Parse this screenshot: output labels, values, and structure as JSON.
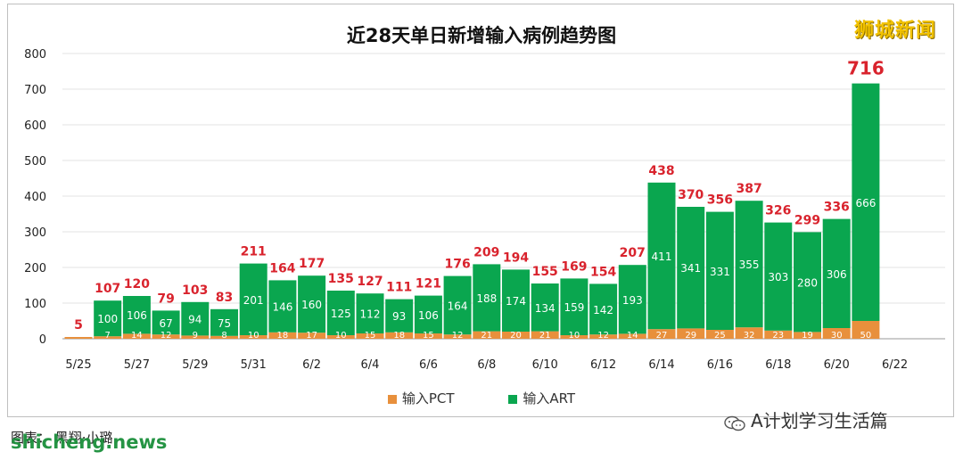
{
  "chart_data": {
    "type": "bar",
    "stacked": true,
    "title": "近28天单日新增输入病例趋势图",
    "categories": [
      "5/25",
      "5/26",
      "5/27",
      "5/28",
      "5/29",
      "5/30",
      "5/31",
      "6/1",
      "6/2",
      "6/3",
      "6/4",
      "6/5",
      "6/6",
      "6/7",
      "6/8",
      "6/9",
      "6/10",
      "6/11",
      "6/12",
      "6/13",
      "6/14",
      "6/15",
      "6/16",
      "6/17",
      "6/18",
      "6/19",
      "6/20",
      "6/21"
    ],
    "x_tick_labels": [
      "5/25",
      "5/27",
      "5/29",
      "5/31",
      "6/2",
      "6/4",
      "6/6",
      "6/8",
      "6/10",
      "6/12",
      "6/14",
      "6/16",
      "6/18",
      "6/20",
      "6/22"
    ],
    "series": [
      {
        "name": "输入PCT",
        "color": "#e8903c",
        "values": [
          5,
          7,
          14,
          12,
          9,
          8,
          10,
          18,
          17,
          10,
          15,
          18,
          15,
          12,
          21,
          20,
          21,
          10,
          12,
          14,
          27,
          29,
          25,
          32,
          23,
          19,
          30,
          50
        ]
      },
      {
        "name": "输入ART",
        "color": "#0aa64f",
        "values": [
          0,
          100,
          106,
          67,
          94,
          75,
          201,
          146,
          160,
          125,
          112,
          93,
          106,
          164,
          188,
          174,
          134,
          159,
          142,
          193,
          411,
          341,
          331,
          355,
          303,
          280,
          306,
          666
        ]
      }
    ],
    "totals": [
      5,
      107,
      120,
      79,
      103,
      83,
      211,
      164,
      177,
      135,
      127,
      111,
      121,
      176,
      209,
      194,
      155,
      169,
      154,
      207,
      438,
      370,
      356,
      387,
      326,
      299,
      336,
      716
    ],
    "y_ticks": [
      "0",
      "100",
      "200",
      "300",
      "400",
      "500",
      "600",
      "700",
      "800"
    ],
    "ylim": [
      0,
      800
    ],
    "grid": true,
    "legend": "bottom-center",
    "total_label_color": "#d9232d"
  },
  "brand": "狮城新闻",
  "source": "图表： 黑翔·小璐",
  "watermark_left": "shicheng.news",
  "watermark_right": "A计划学习生活篇"
}
